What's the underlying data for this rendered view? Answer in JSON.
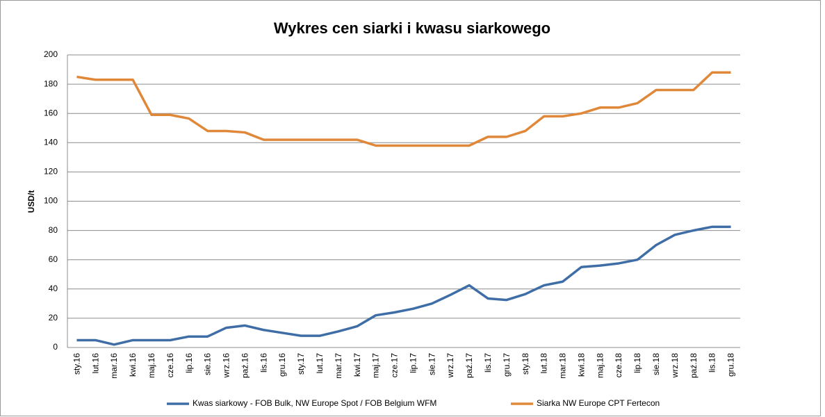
{
  "chart_data": {
    "type": "line",
    "title": "Wykres cen siarki i kwasu siarkowego",
    "y_label": "USD/t",
    "categories": [
      "sty.16",
      "lut.16",
      "mar.16",
      "kwi.16",
      "maj.16",
      "cze.16",
      "lip.16",
      "sie.16",
      "wrz.16",
      "paź.16",
      "lis.16",
      "gru.16",
      "sty.17",
      "lut.17",
      "mar.17",
      "kwi.17",
      "maj.17",
      "cze.17",
      "lip.17",
      "sie.17",
      "wrz.17",
      "paź.17",
      "lis.17",
      "gru.17",
      "sty.18",
      "lut.18",
      "mar.18",
      "kwi.18",
      "maj.18",
      "cze.18",
      "lip.18",
      "sie.18",
      "wrz.18",
      "paź.18",
      "lis.18",
      "gru.18"
    ],
    "series": [
      {
        "name": "Kwas siarkowy - FOB Bulk, NW Europe Spot  / FOB Belgium WFM",
        "color": "#3f6ea6",
        "values": [
          5,
          5,
          2,
          5,
          5,
          5,
          7.5,
          7.5,
          13.5,
          15,
          12,
          10,
          8,
          8,
          11,
          14.5,
          22,
          24,
          26.5,
          30,
          36,
          42.5,
          33.5,
          32.5,
          36.5,
          42.5,
          45,
          55,
          56,
          57.5,
          60,
          70,
          77,
          80,
          82.5,
          82.5
        ]
      },
      {
        "name": "Siarka NW Europe CPT Fertecon",
        "color": "#e0883a",
        "values": [
          185,
          183,
          183,
          183,
          159,
          159,
          156.5,
          148,
          148,
          147,
          142,
          142,
          142,
          142,
          142,
          142,
          138,
          138,
          138,
          138,
          138,
          138,
          144,
          144,
          148,
          158,
          158,
          160,
          164,
          164,
          167,
          176,
          176,
          176,
          188,
          188
        ]
      }
    ],
    "ylim": [
      0,
      200
    ],
    "yticks": [
      0,
      20,
      40,
      60,
      80,
      100,
      120,
      140,
      160,
      180,
      200
    ],
    "grid": true,
    "legend": "bottom"
  }
}
